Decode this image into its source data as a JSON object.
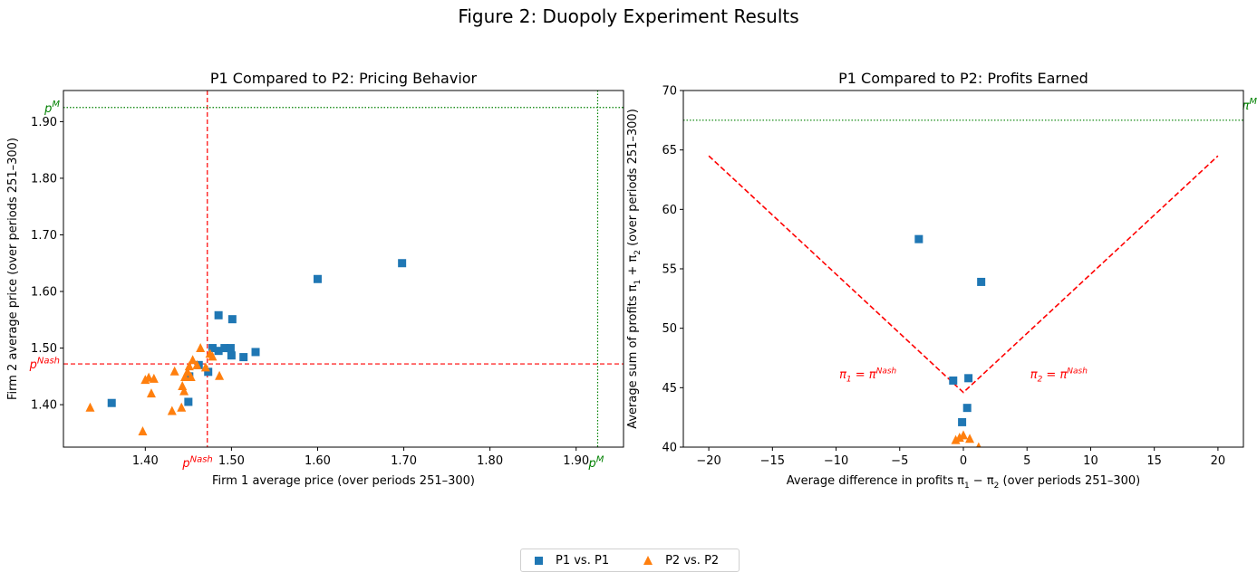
{
  "figure_title": "Figure 2: Duopoly Experiment Results",
  "legend": {
    "items": [
      {
        "label": "P1 vs. P1",
        "marker": "square",
        "color": "#1f77b4"
      },
      {
        "label": "P2 vs. P2",
        "marker": "triangle",
        "color": "#ff7f0e"
      }
    ],
    "placement": "bottom-center"
  },
  "chart_data": [
    {
      "type": "scatter",
      "title": "P1 Compared to P2: Pricing Behavior",
      "xlabel": "Firm 1 average price (over periods 251–300)",
      "ylabel": "Firm 2 average price (over periods 251–300)",
      "xlim": [
        1.305,
        1.955
      ],
      "ylim": [
        1.325,
        1.955
      ],
      "xticks": [
        1.4,
        1.5,
        1.6,
        1.7,
        1.8,
        1.9
      ],
      "yticks": [
        1.4,
        1.5,
        1.6,
        1.7,
        1.8,
        1.9
      ],
      "tick_format": 2,
      "grid": false,
      "reference_lines": [
        {
          "orientation": "vertical",
          "value": 1.472,
          "color": "#ff0000",
          "style": "dashed",
          "label": "p^{Nash}",
          "label_position": "bottom"
        },
        {
          "orientation": "horizontal",
          "value": 1.472,
          "color": "#ff0000",
          "style": "dashed",
          "label": "p^{Nash}",
          "label_position": "left"
        },
        {
          "orientation": "vertical",
          "value": 1.925,
          "color": "#008000",
          "style": "dotted",
          "label": "p^{M}",
          "label_position": "bottom"
        },
        {
          "orientation": "horizontal",
          "value": 1.925,
          "color": "#008000",
          "style": "dotted",
          "label": "p^{M}",
          "label_position": "left"
        }
      ],
      "series": [
        {
          "name": "P1 vs. P1",
          "marker": "square",
          "color": "#1f77b4",
          "points": [
            [
              1.361,
              1.403
            ],
            [
              1.45,
              1.405
            ],
            [
              1.451,
              1.45
            ],
            [
              1.462,
              1.47
            ],
            [
              1.473,
              1.458
            ],
            [
              1.478,
              1.5
            ],
            [
              1.485,
              1.495
            ],
            [
              1.485,
              1.558
            ],
            [
              1.492,
              1.5
            ],
            [
              1.499,
              1.5
            ],
            [
              1.5,
              1.487
            ],
            [
              1.501,
              1.551
            ],
            [
              1.514,
              1.484
            ],
            [
              1.528,
              1.493
            ],
            [
              1.6,
              1.622
            ],
            [
              1.698,
              1.65
            ]
          ]
        },
        {
          "name": "P2 vs. P2",
          "marker": "triangle",
          "color": "#ff7f0e",
          "points": [
            [
              1.336,
              1.395
            ],
            [
              1.397,
              1.353
            ],
            [
              1.4,
              1.444
            ],
            [
              1.404,
              1.448
            ],
            [
              1.407,
              1.42
            ],
            [
              1.41,
              1.446
            ],
            [
              1.431,
              1.389
            ],
            [
              1.434,
              1.459
            ],
            [
              1.442,
              1.395
            ],
            [
              1.443,
              1.433
            ],
            [
              1.445,
              1.424
            ],
            [
              1.446,
              1.449
            ],
            [
              1.449,
              1.458
            ],
            [
              1.451,
              1.468
            ],
            [
              1.453,
              1.449
            ],
            [
              1.455,
              1.479
            ],
            [
              1.46,
              1.47
            ],
            [
              1.464,
              1.5
            ],
            [
              1.47,
              1.466
            ],
            [
              1.475,
              1.49
            ],
            [
              1.478,
              1.485
            ],
            [
              1.486,
              1.451
            ]
          ]
        }
      ]
    },
    {
      "type": "scatter",
      "title": "P1 Compared to P2: Profits Earned",
      "xlabel": "Average difference in profits π_1 − π_2 (over periods 251–300)",
      "ylabel": "Average sum of profits π_1 + π_2 (over periods 251–300)",
      "xlim": [
        -22,
        22
      ],
      "ylim": [
        40,
        70
      ],
      "xticks": [
        -20,
        -15,
        -10,
        -5,
        0,
        5,
        10,
        15,
        20
      ],
      "yticks": [
        40,
        45,
        50,
        55,
        60,
        65,
        70
      ],
      "tick_format": 0,
      "grid": false,
      "reference_lines": [
        {
          "orientation": "horizontal",
          "value": 67.5,
          "color": "#008000",
          "style": "dotted",
          "label": "π^{M}",
          "label_position": "right"
        }
      ],
      "v_curve": {
        "color": "#ff0000",
        "style": "dashed",
        "points": [
          [
            -20,
            64.5
          ],
          [
            0,
            44.6
          ],
          [
            20,
            64.5
          ]
        ]
      },
      "annotations": [
        {
          "text": "π_1 = π^{Nash}",
          "x": -7.5,
          "y": 45.8,
          "color": "#ff0000"
        },
        {
          "text": "π_2 = π^{Nash}",
          "x": 7.5,
          "y": 45.8,
          "color": "#ff0000"
        }
      ],
      "series": [
        {
          "name": "P1 vs. P1",
          "marker": "square",
          "color": "#1f77b4",
          "points": [
            [
              -3.5,
              57.5
            ],
            [
              1.4,
              53.9
            ],
            [
              -0.8,
              45.6
            ],
            [
              0.4,
              45.8
            ],
            [
              0.3,
              43.3
            ],
            [
              -0.1,
              42.1
            ]
          ]
        },
        {
          "name": "P2 vs. P2",
          "marker": "triangle",
          "color": "#ff7f0e",
          "points": [
            [
              -0.6,
              40.6
            ],
            [
              -0.3,
              40.8
            ],
            [
              0.0,
              41.0
            ],
            [
              0.5,
              40.7
            ],
            [
              1.2,
              40.0
            ]
          ]
        }
      ]
    }
  ]
}
